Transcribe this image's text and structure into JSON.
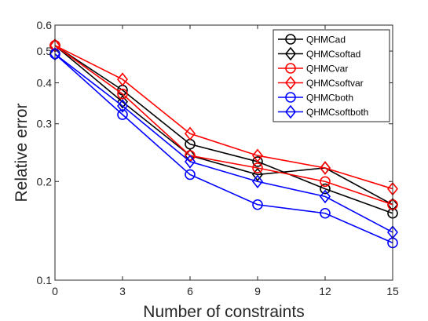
{
  "chart_data": {
    "type": "line",
    "xlabel": "Number of constraints",
    "ylabel": "Relative error",
    "x": [
      0,
      3,
      6,
      9,
      12,
      15
    ],
    "xlim": [
      0,
      15
    ],
    "ylim": [
      0.1,
      0.6
    ],
    "yscale": "log",
    "x_ticks": [
      "0",
      "3",
      "6",
      "9",
      "12",
      "15"
    ],
    "y_ticks": [
      {
        "value": 0.1,
        "label": "0.1"
      },
      {
        "value": 0.2,
        "label": "0.2"
      },
      {
        "value": 0.3,
        "label": "0.3"
      },
      {
        "value": 0.4,
        "label": "0.4"
      },
      {
        "value": 0.5,
        "label": "0.5"
      },
      {
        "value": 0.6,
        "label": "0.6"
      }
    ],
    "grid": false,
    "legend_position": "top-right",
    "series": [
      {
        "name": "QHMCad",
        "color": "#000000",
        "marker": "circle",
        "values": [
          0.52,
          0.38,
          0.26,
          0.23,
          0.19,
          0.16
        ]
      },
      {
        "name": "QHMCsoftad",
        "color": "#000000",
        "marker": "diamond",
        "values": [
          0.52,
          0.35,
          0.24,
          0.21,
          0.22,
          0.17
        ]
      },
      {
        "name": "QHMCvar",
        "color": "#ff0000",
        "marker": "circle",
        "values": [
          0.52,
          0.37,
          0.24,
          0.22,
          0.2,
          0.17
        ]
      },
      {
        "name": "QHMCsoftvar",
        "color": "#ff0000",
        "marker": "diamond",
        "values": [
          0.52,
          0.41,
          0.28,
          0.24,
          0.22,
          0.19
        ]
      },
      {
        "name": "QHMCboth",
        "color": "#0000ff",
        "marker": "circle",
        "values": [
          0.49,
          0.32,
          0.21,
          0.17,
          0.16,
          0.13
        ]
      },
      {
        "name": "QHMCsoftboth",
        "color": "#0000ff",
        "marker": "diamond",
        "values": [
          0.49,
          0.34,
          0.23,
          0.2,
          0.18,
          0.14
        ]
      }
    ]
  }
}
